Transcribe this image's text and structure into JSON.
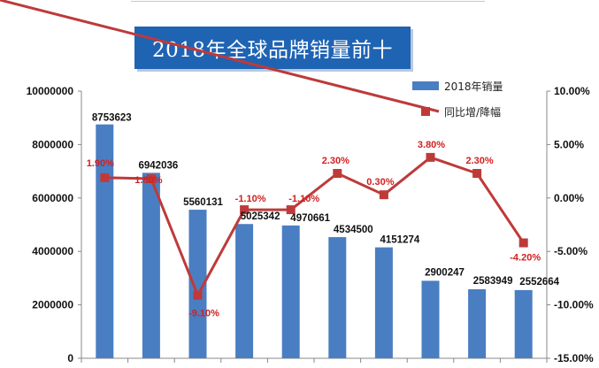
{
  "title": "2018年全球品牌销量前十",
  "legend": {
    "bar": "2018年销量",
    "line": "同比增/降幅"
  },
  "colors": {
    "bar": "#4a7ec2",
    "line": "#be3a3a",
    "label_red": "#d22020",
    "title_bg": "#1f63b3"
  },
  "chart_data": {
    "type": "bar+line",
    "categories": [
      "",
      "",
      "",
      "",
      "",
      "",
      "",
      "",
      "",
      ""
    ],
    "series": [
      {
        "name": "2018年销量",
        "type": "bar",
        "axis": "left",
        "values": [
          8753623,
          6942036,
          5560131,
          5025342,
          4970661,
          4534500,
          4151274,
          2900247,
          2583949,
          2552664
        ],
        "labels": [
          "8753623",
          "6942036",
          "5560131",
          "5025342",
          "4970661",
          "4534500",
          "4151274",
          "2900247",
          "2583949",
          "2552664"
        ]
      },
      {
        "name": "同比增/降幅",
        "type": "line",
        "axis": "right",
        "values": [
          1.9,
          1.8,
          -9.1,
          -1.1,
          -1.1,
          2.3,
          0.3,
          3.8,
          2.3,
          -4.2
        ],
        "labels": [
          "1.90%",
          "1.80%",
          "-9.10%",
          "-1.10%",
          "-1.10%",
          "2.30%",
          "0.30%",
          "3.80%",
          "2.30%",
          "-4.20%"
        ]
      }
    ],
    "y_left": {
      "min": 0,
      "max": 10000000,
      "ticks": [
        "0",
        "2000000",
        "4000000",
        "6000000",
        "8000000",
        "10000000"
      ]
    },
    "y_right": {
      "min": -15,
      "max": 10,
      "ticks": [
        "-15.00%",
        "-10.00%",
        "-5.00%",
        "0.00%",
        "5.00%",
        "10.00%"
      ]
    },
    "grid": false,
    "legend_position": "top-right"
  }
}
